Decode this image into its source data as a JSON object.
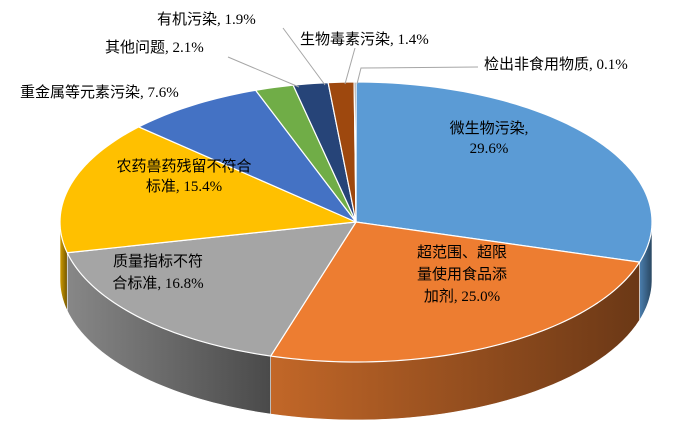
{
  "chart_data": {
    "type": "pie",
    "style": "3d",
    "slices": [
      {
        "name": "微生物污染",
        "value": 29.6,
        "color": "#5b9bd5",
        "label_lines": [
          "微生物污染,",
          "29.6%"
        ]
      },
      {
        "name": "超范围、超限量使用食品添加剂",
        "value": 25.0,
        "color": "#ed7d31",
        "label_lines": [
          "超范围、超限",
          "量使用食品添",
          "加剂, 25.0%"
        ]
      },
      {
        "name": "质量指标不符合标准",
        "value": 16.8,
        "color": "#a5a5a5",
        "label_lines": [
          "质量指标不符",
          "合标准, 16.8%"
        ]
      },
      {
        "name": "农药兽药残留不符合标准",
        "value": 15.4,
        "color": "#ffc000",
        "label_lines": [
          "农药兽药残留不符合",
          "标准, 15.4%"
        ]
      },
      {
        "name": "重金属等元素污染",
        "value": 7.6,
        "color": "#4472c4",
        "label_lines": [
          "重金属等元素污染, 7.6%"
        ]
      },
      {
        "name": "其他问题",
        "value": 2.1,
        "color": "#70ad47",
        "label_lines": [
          "其他问题, 2.1%"
        ]
      },
      {
        "name": "有机污染",
        "value": 1.9,
        "color": "#264478",
        "label_lines": [
          "有机污染, 1.9%"
        ]
      },
      {
        "name": "生物毒素污染",
        "value": 1.4,
        "color": "#9e480e",
        "label_lines": [
          "生物毒素污染, 1.4%"
        ]
      },
      {
        "name": "检出非食用物质",
        "value": 0.1,
        "color": "#636363",
        "label_lines": [
          "检出非食用物质, 0.1%"
        ]
      }
    ],
    "legend": "none"
  }
}
